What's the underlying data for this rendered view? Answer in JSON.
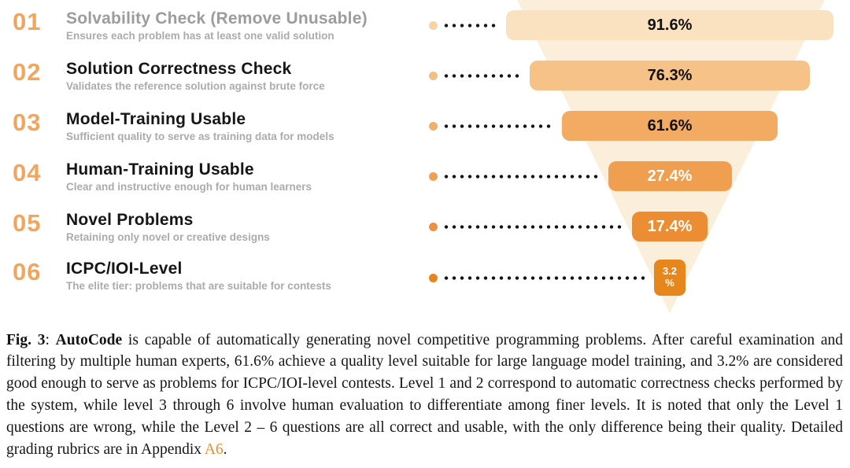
{
  "funnel": {
    "steps": [
      {
        "number": "01",
        "title": "Solvability Check (Remove Unusable)",
        "subtitle": "Ensures each problem has at least one valid solution",
        "value": "91.6%",
        "bar_color": "#FAE2C1",
        "value_color": "#111111",
        "dot_color": "#F7D3A6",
        "title_muted": true
      },
      {
        "number": "02",
        "title": "Solution Correctness Check",
        "subtitle": "Validates the reference solution against brute force",
        "value": "76.3%",
        "bar_color": "#F6C288",
        "value_color": "#111111",
        "dot_color": "#F5BE82",
        "title_muted": false
      },
      {
        "number": "03",
        "title": "Model-Training Usable",
        "subtitle": "Sufficient quality to serve as training data for models",
        "value": "61.6%",
        "bar_color": "#F3AA63",
        "value_color": "#111111",
        "dot_color": "#F3AF6A",
        "title_muted": false
      },
      {
        "number": "04",
        "title": "Human-Training Usable",
        "subtitle": "Clear and instructive enough for human learners",
        "value": "27.4%",
        "bar_color": "#F09E50",
        "value_color": "#ffffff",
        "dot_color": "#F1A053",
        "title_muted": false
      },
      {
        "number": "05",
        "title": "Novel Problems",
        "subtitle": "Retaining only novel or creative designs",
        "value": "17.4%",
        "bar_color": "#EC8D33",
        "value_color": "#ffffff",
        "dot_color": "#ED9140",
        "title_muted": false
      },
      {
        "number": "06",
        "title": "ICPC/IOI-Level",
        "subtitle": "The elite tier: problems that are suitable for contests",
        "value": "3.2 %",
        "bar_color": "#E7861C",
        "value_color": "#ffffff",
        "dot_color": "#E8851F",
        "title_muted": false
      }
    ]
  },
  "caption": {
    "fig_label": "Fig. 3",
    "colon": ": ",
    "bold_term": "AutoCode",
    "text_before_link": " is capable of automatically generating novel competitive programming problems. After careful examination and filtering by multiple human experts, 61.6% achieve a quality level suitable for large language model training, and 3.2% are considered good enough to serve as problems for ICPC/IOI-level contests. Level 1 and 2 correspond to automatic correctness checks performed by the system, while level 3 through 6 involve human evaluation to differentiate among finer levels. It is noted that only the Level 1 questions are wrong, while the Level 2 – 6 questions are all correct and usable, with the only difference being their quality. Detailed grading rubrics are in Appendix ",
    "appendix_link": "A6",
    "period": "."
  },
  "colors": {
    "accent_orange": "#F3A55B",
    "funnel_background": "#FBEEDA",
    "link_orange": "#F08A2E",
    "muted_text": "#ABABAB"
  },
  "chart_data": {
    "type": "funnel",
    "title": "Problem filtering funnel",
    "categories": [
      "Solvability Check (Remove Unusable)",
      "Solution Correctness Check",
      "Model-Training Usable",
      "Human-Training Usable",
      "Novel Problems",
      "ICPC/IOI-Level"
    ],
    "values": [
      91.6,
      76.3,
      61.6,
      27.4,
      17.4,
      3.2
    ],
    "value_labels": [
      "91.6%",
      "76.3%",
      "61.6%",
      "27.4%",
      "17.4%",
      "3.2 %"
    ],
    "unit": "%",
    "orientation": "top-wide-to-bottom-narrow",
    "legend": "none"
  }
}
